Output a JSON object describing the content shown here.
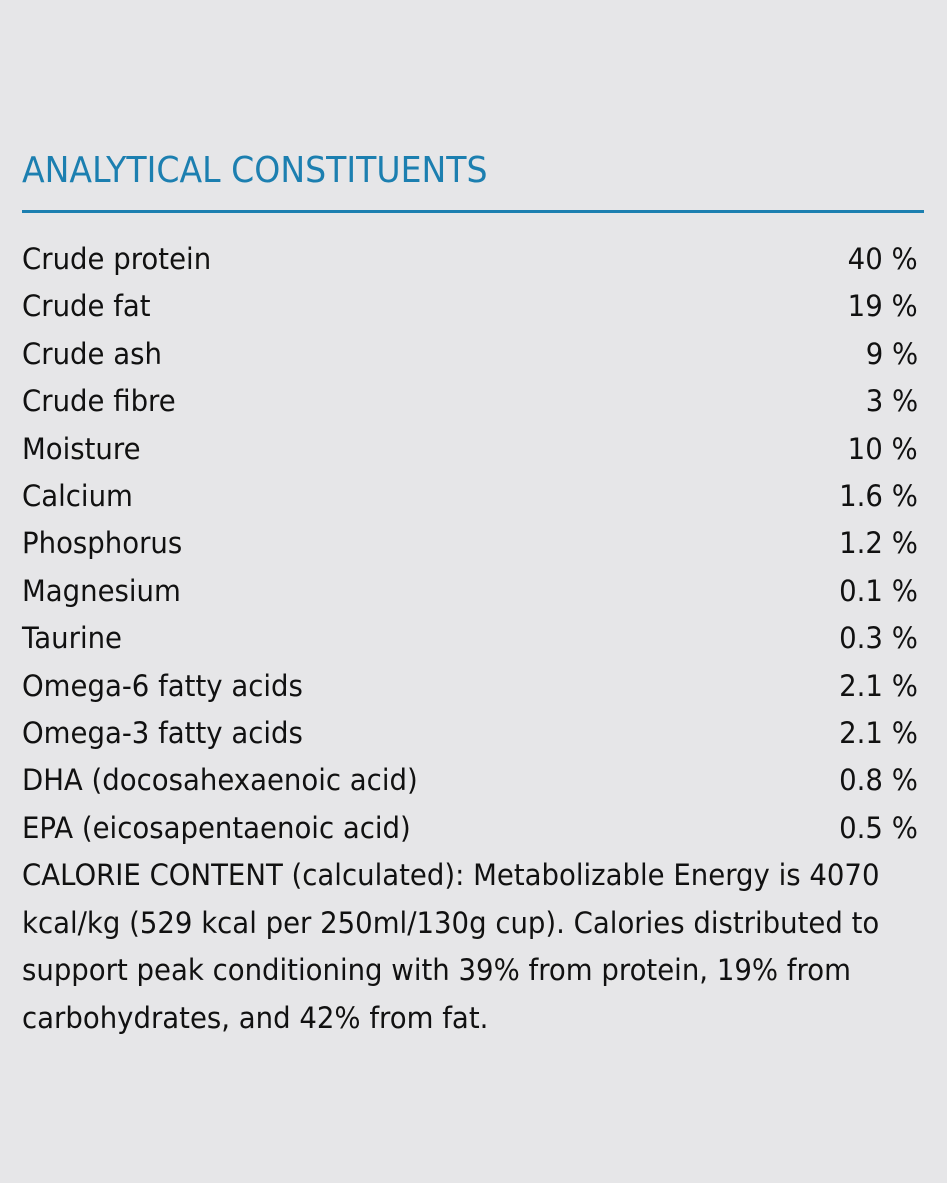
{
  "heading": "ANALYTICAL CONSTITUENTS",
  "rows": [
    {
      "label": "Crude protein",
      "value": "40 %"
    },
    {
      "label": "Crude fat",
      "value": "19 %"
    },
    {
      "label": "Crude ash",
      "value": "9 %"
    },
    {
      "label": "Crude fibre",
      "value": "3 %"
    },
    {
      "label": "Moisture",
      "value": "10 %"
    },
    {
      "label": "Calcium",
      "value": "1.6 %"
    },
    {
      "label": "Phosphorus",
      "value": "1.2 %"
    },
    {
      "label": "Magnesium",
      "value": "0.1 %"
    },
    {
      "label": "Taurine",
      "value": "0.3 %"
    },
    {
      "label": "Omega-6 fatty acids",
      "value": "2.1 %"
    },
    {
      "label": "Omega-3 fatty acids",
      "value": "2.1 %"
    },
    {
      "label": "DHA (docosahexaenoic acid)",
      "value": "0.8 %"
    },
    {
      "label": "EPA (eicosapentaenoic acid)",
      "value": "0.5 %"
    }
  ],
  "calorie_note": "CALORIE CONTENT (calculated): Metabolizable Energy is 4070 kcal/kg (529 kcal per 250ml/130g cup). Calories distributed to support peak conditioning with 39% from protein, 19% from carbohydrates, and 42% from fat.",
  "colors": {
    "background": "#e6e6e8",
    "accent": "#1c7fb0",
    "text": "#111111"
  }
}
